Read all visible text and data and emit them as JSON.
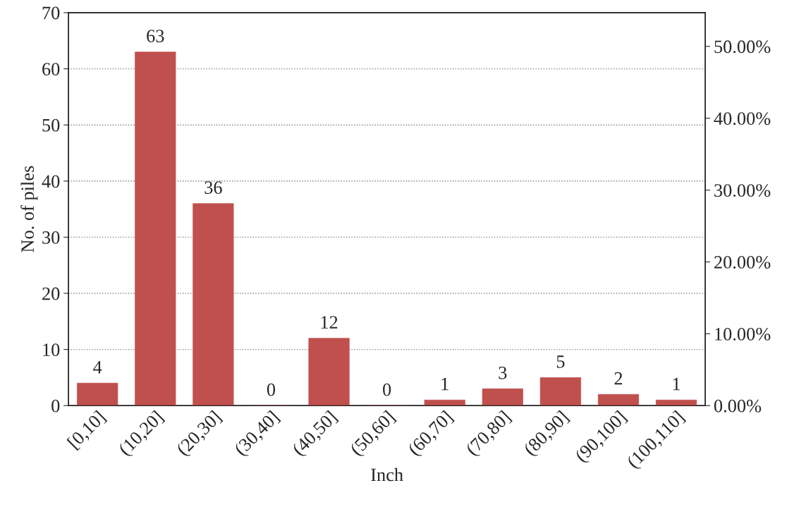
{
  "chart_data": {
    "type": "bar",
    "xlabel": "Inch",
    "ylabel": "No. of piles",
    "categories": [
      "[0,10]",
      "(10,20]",
      "(20,30]",
      "(30,40]",
      "(40,50]",
      "(50,60]",
      "(60,70]",
      "(70,80]",
      "(80,90]",
      "(90,100]",
      "(100,110]"
    ],
    "series": [
      {
        "color": "#c0504d",
        "values": [
          4,
          63,
          36,
          0,
          12,
          0,
          1,
          3,
          5,
          2,
          1
        ]
      }
    ],
    "data_labels": true,
    "ylim": [
      0,
      70
    ],
    "yticks": [
      0,
      10,
      20,
      30,
      40,
      50,
      60,
      70
    ],
    "y2lim": [
      0,
      54.69
    ],
    "y2ticks": [
      {
        "value": 0,
        "label": "0.00%"
      },
      {
        "value": 10,
        "label": "10.00%"
      },
      {
        "value": 20,
        "label": "20.00%"
      },
      {
        "value": 30,
        "label": "30.00%"
      },
      {
        "value": 40,
        "label": "40.00%"
      },
      {
        "value": 50,
        "label": "50.00%"
      }
    ],
    "grid": "y",
    "legend": false
  }
}
